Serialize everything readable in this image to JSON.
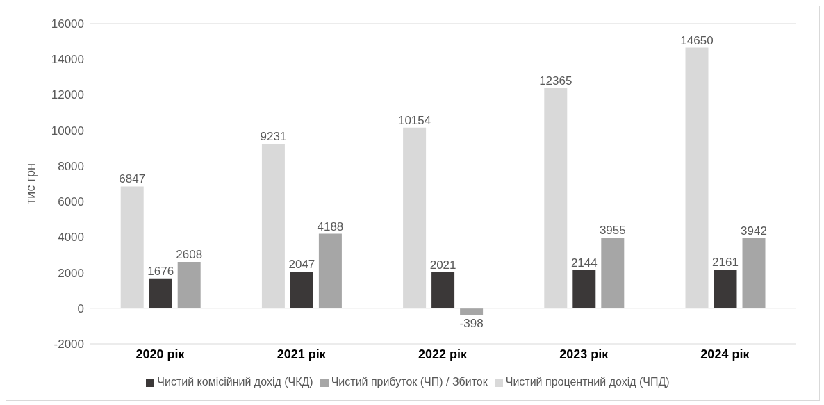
{
  "chart_data": {
    "type": "bar",
    "ylabel": "тис грн",
    "categories": [
      "2020 рік",
      "2021 рік",
      "2022 рік",
      "2023 рік",
      "2024 рік"
    ],
    "series": [
      {
        "name": "Чистий процентний дохід (ЧПД)",
        "color": "#d9d9d9",
        "values": [
          6847,
          9231,
          10154,
          12365,
          14650
        ]
      },
      {
        "name": "Чистий комісійний дохід (ЧКД)",
        "color": "#3b3838",
        "values": [
          1676,
          2047,
          2021,
          2144,
          2161
        ]
      },
      {
        "name": "Чистий прибуток (ЧП) / Збиток",
        "color": "#a6a6a6",
        "values": [
          2608,
          4188,
          -398,
          3955,
          3942
        ]
      }
    ],
    "ylim": [
      -2000,
      16000
    ],
    "yticks": [
      -2000,
      0,
      2000,
      4000,
      6000,
      8000,
      10000,
      12000,
      14000,
      16000
    ],
    "grid": "y",
    "legend": "bottom",
    "data_labels": true
  }
}
